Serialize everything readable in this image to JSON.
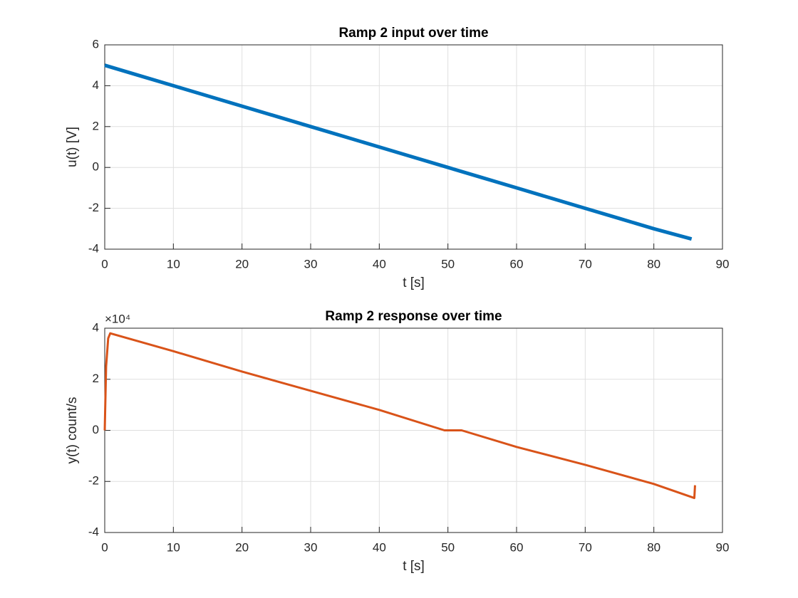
{
  "chart_data": [
    {
      "type": "line",
      "title": "Ramp 2 input over time",
      "xlabel": "t [s]",
      "ylabel": "u(t) [V]",
      "series": [
        {
          "color": "#0072bd",
          "x": [
            0,
            5,
            10,
            15,
            20,
            25,
            30,
            35,
            40,
            45,
            50,
            55,
            60,
            65,
            70,
            75,
            80,
            85.5
          ],
          "values": [
            5,
            4.5,
            4,
            3.5,
            3,
            2.5,
            2,
            1.5,
            1,
            0.5,
            0,
            -0.5,
            -1,
            -1.5,
            -2,
            -2.5,
            -3,
            -3.5
          ]
        }
      ],
      "xlim": [
        0,
        90
      ],
      "xticks": [
        0,
        10,
        20,
        30,
        40,
        50,
        60,
        70,
        80,
        90
      ],
      "ylim": [
        -4,
        6
      ],
      "yticks": [
        -4,
        -2,
        0,
        2,
        4,
        6
      ],
      "grid": true
    },
    {
      "type": "line",
      "title": "Ramp 2 response over time",
      "xlabel": "t [s]",
      "ylabel": "y(t) count/s",
      "axis_multiplier": "×10⁴",
      "series": [
        {
          "color": "#d95319",
          "x": [
            0,
            0.2,
            0.5,
            0.8,
            10,
            20,
            30,
            40,
            49.5,
            52,
            60,
            70,
            80,
            85.9,
            86
          ],
          "values": [
            0,
            25000,
            36000,
            38000,
            31000,
            23000,
            15500,
            8000,
            0,
            0,
            -6500,
            -13500,
            -21000,
            -26500,
            -21500
          ]
        }
      ],
      "xlim": [
        0,
        90
      ],
      "xticks": [
        0,
        10,
        20,
        30,
        40,
        50,
        60,
        70,
        80,
        90
      ],
      "ylim": [
        -40000,
        40000
      ],
      "yticks": [
        {
          "value": -40000,
          "label": "-4"
        },
        {
          "value": -20000,
          "label": "-2"
        },
        {
          "value": 0,
          "label": "0"
        },
        {
          "value": 20000,
          "label": "2"
        },
        {
          "value": 40000,
          "label": "4"
        }
      ],
      "grid": true
    }
  ]
}
